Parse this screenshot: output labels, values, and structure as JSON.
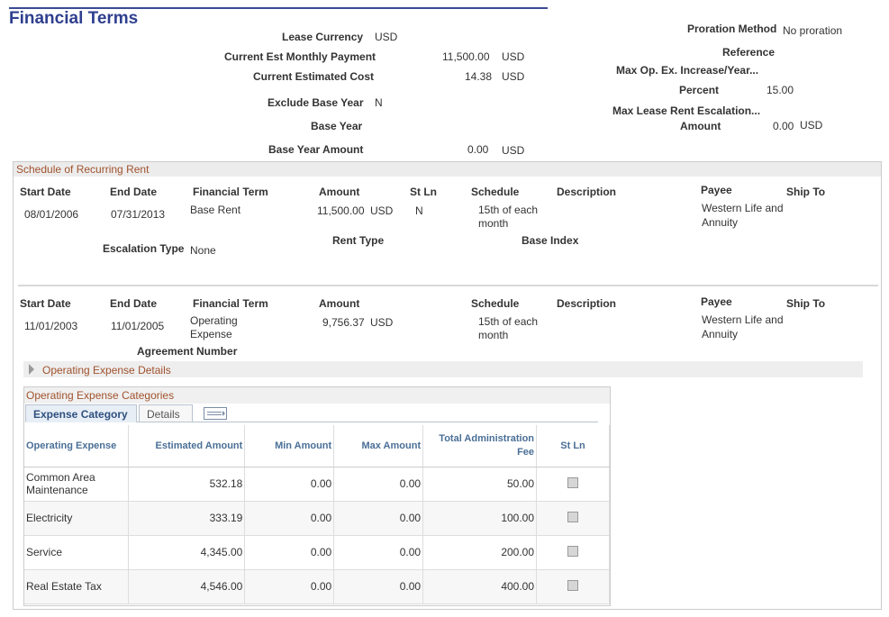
{
  "header": {
    "title": "Financial Terms"
  },
  "summary": {
    "lease_currency_label": "Lease Currency",
    "lease_currency_value": "USD",
    "monthly_payment_label": "Current Est Monthly Payment",
    "monthly_payment_value": "11,500.00",
    "monthly_payment_currency": "USD",
    "estimated_cost_label": "Current Estimated Cost",
    "estimated_cost_value": "14.38",
    "estimated_cost_currency": "USD",
    "exclude_base_year_label": "Exclude Base Year",
    "exclude_base_year_value": "N",
    "base_year_label": "Base Year",
    "base_year_amount_label": "Base Year Amount",
    "base_year_amount_value": "0.00",
    "base_year_amount_currency": "USD",
    "proration_label": "Proration Method",
    "proration_value": "No proration",
    "reference_label": "Reference",
    "max_opex_label": "Max Op. Ex. Increase/Year...",
    "percent_label": "Percent",
    "percent_value": "15.00",
    "max_escalation_label": "Max Lease Rent Escalation...",
    "amount_label": "Amount",
    "amount_value": "0.00",
    "amount_currency": "USD"
  },
  "schedule": {
    "title": "Schedule of Recurring Rent",
    "rows": [
      {
        "start_date_label": "Start Date",
        "end_date_label": "End Date",
        "financial_term_label": "Financial Term",
        "amount_label": "Amount",
        "stln_label": "St Ln",
        "schedule_label": "Schedule",
        "description_label": "Description",
        "payee_label": "Payee",
        "ship_to_label": "Ship To",
        "start_date": "08/01/2006",
        "end_date": "07/31/2013",
        "financial_term": "Base Rent",
        "amount": "11,500.00",
        "currency": "USD",
        "stln": "N",
        "schedule_line1": "15th of each",
        "schedule_line2": "month",
        "payee_line1": "Western Life and",
        "payee_line2": "Annuity",
        "escalation_type_label": "Escalation Type",
        "escalation_type_value": "None",
        "rent_type_label": "Rent Type",
        "base_index_label": "Base Index"
      },
      {
        "start_date_label": "Start Date",
        "end_date_label": "End Date",
        "financial_term_label": "Financial Term",
        "amount_label": "Amount",
        "schedule_label": "Schedule",
        "description_label": "Description",
        "payee_label": "Payee",
        "ship_to_label": "Ship To",
        "start_date": "11/01/2003",
        "end_date": "11/01/2005",
        "financial_term_line1": "Operating",
        "financial_term_line2": "Expense",
        "amount": "9,756.37",
        "currency": "USD",
        "schedule_line1": "15th of each",
        "schedule_line2": "month",
        "payee_line1": "Western Life and",
        "payee_line2": "Annuity",
        "agreement_number_label": "Agreement Number"
      }
    ]
  },
  "operating_expense_details": {
    "label": "Operating Expense Details"
  },
  "categories": {
    "title": "Operating Expense Categories",
    "tabs": [
      "Expense Category",
      "Details"
    ],
    "columns": [
      "Operating Expense",
      "Estimated Amount",
      "Min Amount",
      "Max Amount",
      "Total Administration Fee",
      "St Ln"
    ],
    "rows": [
      {
        "name_line1": "Common Area",
        "name_line2": "Maintenance",
        "estimated": "532.18",
        "min": "0.00",
        "max": "0.00",
        "admin_fee": "50.00",
        "stln": false
      },
      {
        "name_line1": "Electricity",
        "name_line2": "",
        "estimated": "333.19",
        "min": "0.00",
        "max": "0.00",
        "admin_fee": "100.00",
        "stln": false
      },
      {
        "name_line1": "Service",
        "name_line2": "",
        "estimated": "4,345.00",
        "min": "0.00",
        "max": "0.00",
        "admin_fee": "200.00",
        "stln": false
      },
      {
        "name_line1": "Real Estate Tax",
        "name_line2": "",
        "estimated": "4,546.00",
        "min": "0.00",
        "max": "0.00",
        "admin_fee": "400.00",
        "stln": false
      }
    ]
  },
  "icons": {
    "expand": "expand-arrow-icon",
    "grid_view": "view-all-icon",
    "checkbox": "checkbox-icon"
  },
  "colors": {
    "title": "#2f3f8f",
    "section_title": "#a0522d",
    "grid_header_text": "#4a6f96"
  }
}
